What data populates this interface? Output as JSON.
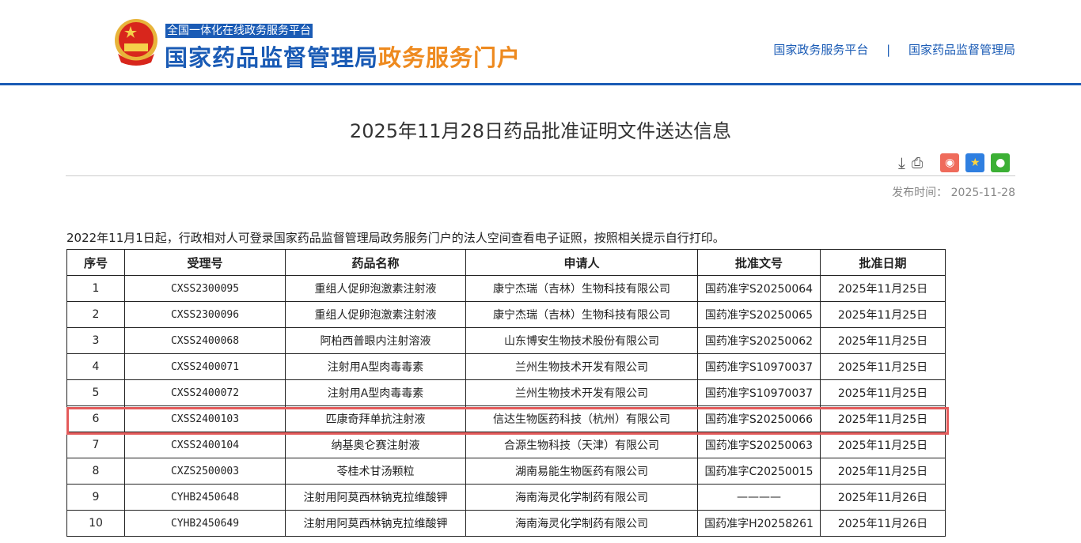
{
  "header": {
    "platform": "全国一体化在线政务服务平台",
    "logo_main": "国家药品监督管理局",
    "logo_accent": "政务服务门户",
    "links": [
      "国家政务服务平台",
      "国家药品监督管理局"
    ],
    "separator": "|"
  },
  "article": {
    "title": "2025年11月28日药品批准证明文件送达信息",
    "publish_label": "发布时间：",
    "publish_date": "2025-11-28",
    "note": "2022年11月1日起，行政相对人可登录国家药品监督管理局政务服务门户的法人空间查看电子证照，按照相关提示自行打印。"
  },
  "colors": {
    "brand_blue": "#1a5bb5",
    "brand_orange": "#ee8a1f",
    "highlight": "#e45b5b"
  },
  "table": {
    "headers": [
      "序号",
      "受理号",
      "药品名称",
      "申请人",
      "批准文号",
      "批准日期"
    ],
    "rows": [
      [
        "1",
        "CXSS2300095",
        "重组人促卵泡激素注射液",
        "康宁杰瑞（吉林）生物科技有限公司",
        "国药准字S20250064",
        "2025年11月25日"
      ],
      [
        "2",
        "CXSS2300096",
        "重组人促卵泡激素注射液",
        "康宁杰瑞（吉林）生物科技有限公司",
        "国药准字S20250065",
        "2025年11月25日"
      ],
      [
        "3",
        "CXSS2400068",
        "阿柏西普眼内注射溶液",
        "山东博安生物技术股份有限公司",
        "国药准字S20250062",
        "2025年11月25日"
      ],
      [
        "4",
        "CXSS2400071",
        "注射用A型肉毒毒素",
        "兰州生物技术开发有限公司",
        "国药准字S10970037",
        "2025年11月25日"
      ],
      [
        "5",
        "CXSS2400072",
        "注射用A型肉毒毒素",
        "兰州生物技术开发有限公司",
        "国药准字S10970037",
        "2025年11月25日"
      ],
      [
        "6",
        "CXSS2400103",
        "匹康奇拜单抗注射液",
        "信达生物医药科技（杭州）有限公司",
        "国药准字S20250066",
        "2025年11月25日"
      ],
      [
        "7",
        "CXSS2400104",
        "纳基奥仑赛注射液",
        "合源生物科技（天津）有限公司",
        "国药准字S20250063",
        "2025年11月25日"
      ],
      [
        "8",
        "CXZS2500003",
        "苓桂术甘汤颗粒",
        "湖南易能生物医药有限公司",
        "国药准字C20250015",
        "2025年11月25日"
      ],
      [
        "9",
        "CYHB2450648",
        "注射用阿莫西林钠克拉维酸钾",
        "海南海灵化学制药有限公司",
        "————",
        "2025年11月26日"
      ],
      [
        "10",
        "CYHB2450649",
        "注射用阿莫西林钠克拉维酸钾",
        "海南海灵化学制药有限公司",
        "国药准字H20258261",
        "2025年11月26日"
      ]
    ]
  }
}
